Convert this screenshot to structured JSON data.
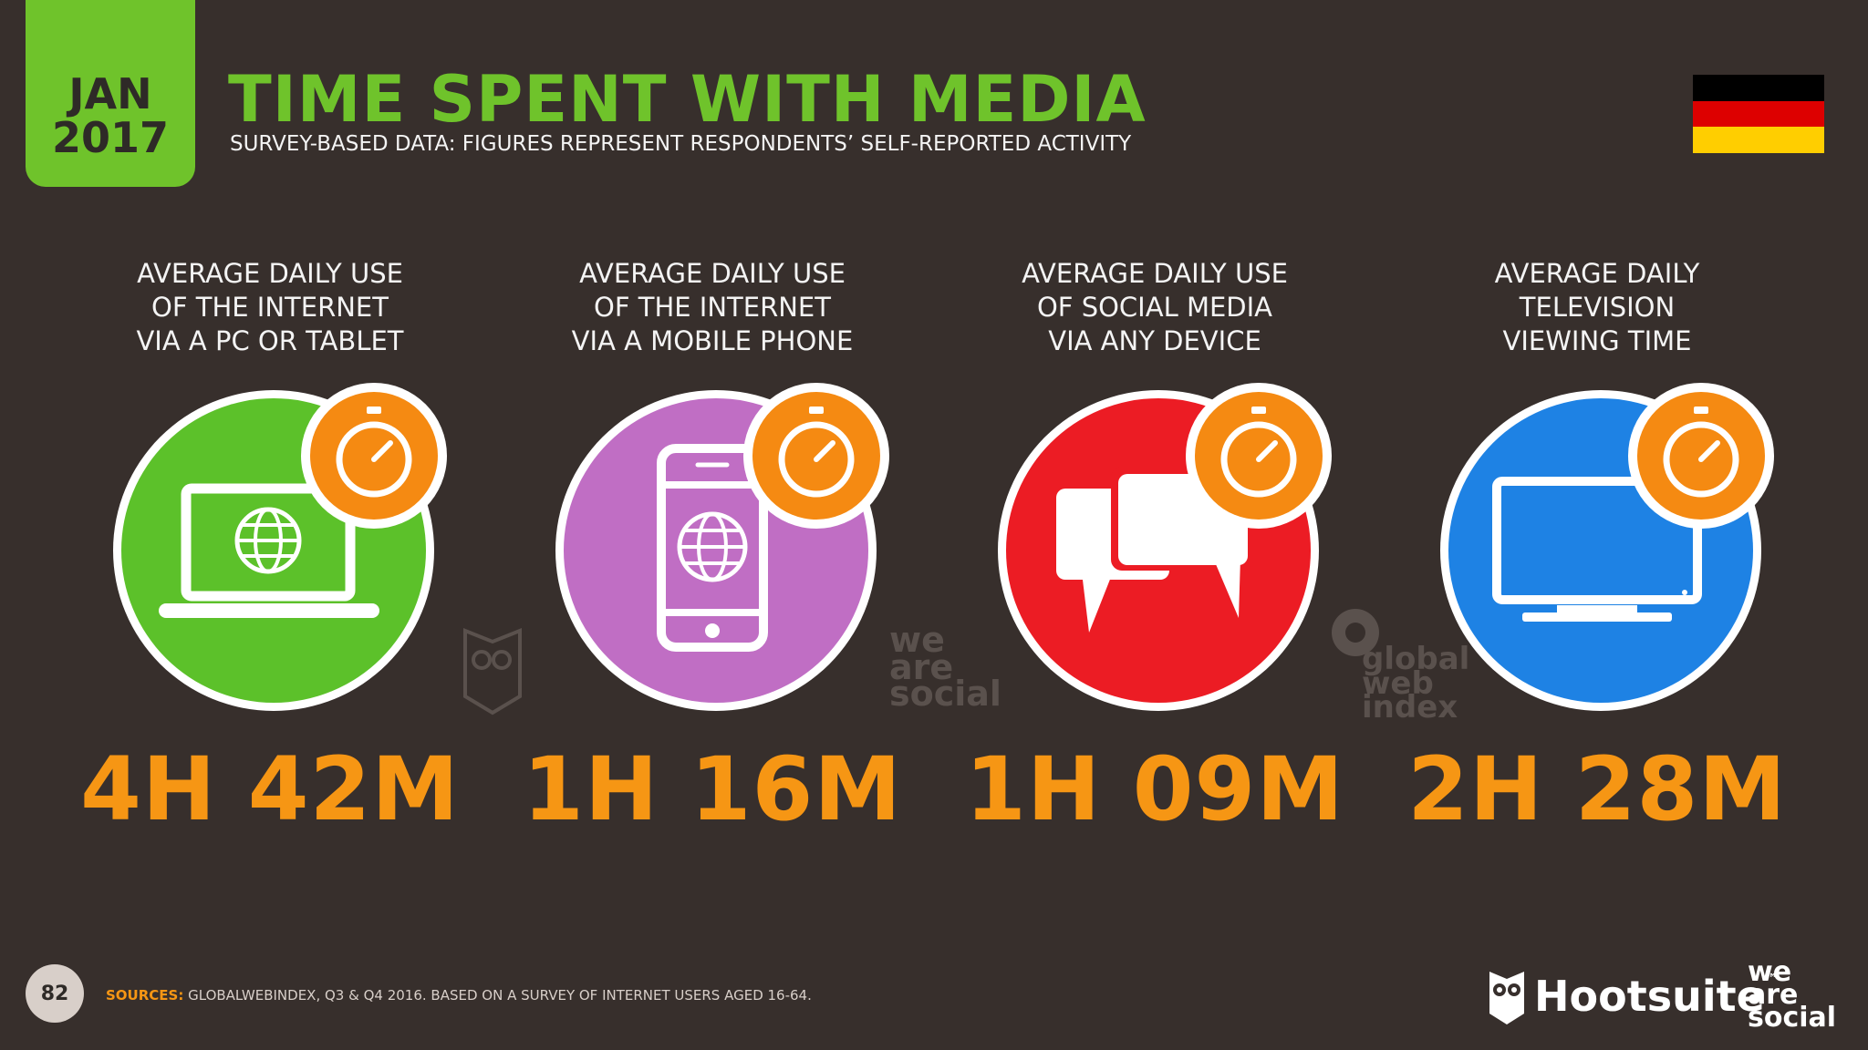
{
  "header": {
    "month": "JAN",
    "year": "2017",
    "title": "TIME SPENT WITH MEDIA",
    "subtitle": "SURVEY-BASED DATA: FIGURES REPRESENT RESPONDENTS’ SELF-REPORTED ACTIVITY"
  },
  "flag": {
    "colors": [
      "#000000",
      "#dd0000",
      "#ffce00"
    ]
  },
  "panels": [
    {
      "label": "AVERAGE DAILY USE\nOF THE INTERNET\nVIA A PC OR TABLET",
      "value": "4H 42M",
      "icon": "laptop-globe-icon",
      "color": "#5cc12a"
    },
    {
      "label": "AVERAGE DAILY USE\nOF THE INTERNET\nVIA A MOBILE PHONE",
      "value": "1H 16M",
      "icon": "mobile-globe-icon",
      "color": "#c06ec4"
    },
    {
      "label": "AVERAGE DAILY USE\nOF SOCIAL MEDIA\nVIA ANY DEVICE",
      "value": "1H 09M",
      "icon": "chat-bubbles-icon",
      "color": "#ec1c24"
    },
    {
      "label": "AVERAGE DAILY\nTELEVISION\nVIEWING TIME",
      "value": "2H 28M",
      "icon": "television-icon",
      "color": "#1e82e4"
    }
  ],
  "watermarks": {
    "we_are_social": "we\nare\nsocial",
    "global_web_index": "global\nweb\nindex"
  },
  "footer": {
    "page_number": "82",
    "sources_label": "SOURCES:",
    "sources_text": "GLOBALWEBINDEX, Q3 & Q4 2016. BASED ON A SURVEY OF INTERNET USERS AGED 16-64.",
    "brand_hootsuite": "Hootsuite",
    "brand_hootsuite_tm": "™",
    "brand_was": "we\nare\nsocial"
  }
}
